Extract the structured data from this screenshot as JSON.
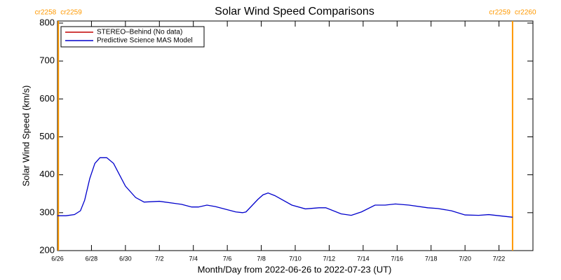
{
  "chart_data": {
    "type": "line",
    "title": "Solar Wind Speed Comparisons",
    "x_label": "Month/Day from 2022-06-26 to 2022-07-23 (UT)",
    "y_label": "Solar Wind Speed (km/s)",
    "xlim": [
      0,
      28
    ],
    "xticks": [
      {
        "value": 0,
        "label": "6/26"
      },
      {
        "value": 2,
        "label": "6/28"
      },
      {
        "value": 4,
        "label": "6/30"
      },
      {
        "value": 6,
        "label": "7/2"
      },
      {
        "value": 8,
        "label": "7/4"
      },
      {
        "value": 10,
        "label": "7/6"
      },
      {
        "value": 12,
        "label": "7/8"
      },
      {
        "value": 14,
        "label": "7/10"
      },
      {
        "value": 16,
        "label": "7/12"
      },
      {
        "value": 18,
        "label": "7/14"
      },
      {
        "value": 20,
        "label": "7/16"
      },
      {
        "value": 22,
        "label": "7/18"
      },
      {
        "value": 24,
        "label": "7/20"
      },
      {
        "value": 26,
        "label": "7/22"
      }
    ],
    "ylim": [
      200,
      800
    ],
    "yticks": [
      200,
      300,
      400,
      500,
      600,
      700,
      800
    ],
    "legend": "upper left",
    "carrington_boundaries": [
      {
        "x": 0.05,
        "before": "cr2258",
        "after": "cr2259",
        "color": "#ff9900"
      },
      {
        "x": 26.8,
        "before": "cr2259",
        "after": "cr2260",
        "color": "#ff9900"
      }
    ],
    "x": [
      0,
      0.5,
      1,
      1.35,
      1.6,
      1.9,
      2.2,
      2.5,
      2.9,
      3.3,
      4,
      4.6,
      5.1,
      6,
      7.3,
      7.9,
      8.3,
      8.8,
      9.3,
      10.5,
      10.9,
      11.1,
      11.8,
      12.1,
      12.4,
      12.8,
      13.8,
      14.6,
      15.4,
      15.8,
      16.7,
      17.3,
      17.9,
      18.7,
      19.3,
      19.9,
      20.7,
      21.8,
      22.4,
      23.2,
      24,
      24.8,
      25.4,
      26,
      26.8
    ],
    "series": [
      {
        "name": "STEREO–Behind (No data)",
        "color": "#c00000",
        "values": [
          null,
          null,
          null,
          null,
          null,
          null,
          null,
          null,
          null,
          null,
          null,
          null,
          null,
          null,
          null,
          null,
          null,
          null,
          null,
          null,
          null,
          null,
          null,
          null,
          null,
          null,
          null,
          null,
          null,
          null,
          null,
          null,
          null,
          null,
          null,
          null,
          null,
          null,
          null,
          null,
          null,
          null,
          null,
          null,
          null
        ]
      },
      {
        "name": "Predictive Science MAS Model",
        "color": "#0000cc",
        "values": [
          292,
          292,
          295,
          305,
          333,
          390,
          430,
          445,
          445,
          430,
          370,
          340,
          328,
          330,
          322,
          315,
          315,
          320,
          316,
          302,
          300,
          302,
          335,
          347,
          352,
          345,
          320,
          310,
          313,
          313,
          297,
          293,
          302,
          320,
          320,
          323,
          320,
          313,
          311,
          305,
          294,
          293,
          295,
          292,
          288
        ]
      }
    ]
  }
}
